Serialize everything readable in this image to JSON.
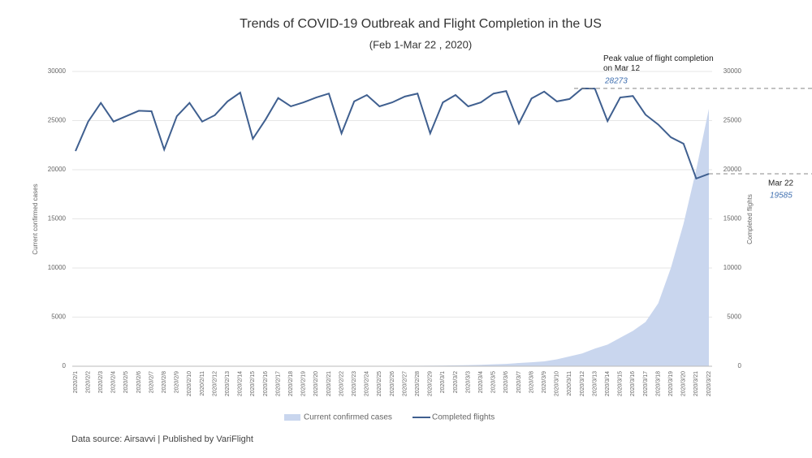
{
  "chart_data": {
    "type": "area-line",
    "title": "Trends of COVID-19 Outbreak and Flight Completion in the US",
    "subtitle": "(Feb 1-Mar 22 , 2020)",
    "ylabel": "Current confirmed cases",
    "y2label": "Completed flights",
    "source": "Data source: Airsavvi  |  Published by VariFlight",
    "categories": [
      "2020/2/1",
      "2020/2/2",
      "2020/2/3",
      "2020/2/4",
      "2020/2/5",
      "2020/2/6",
      "2020/2/7",
      "2020/2/8",
      "2020/2/9",
      "2020/2/10",
      "2020/2/11",
      "2020/2/12",
      "2020/2/13",
      "2020/2/14",
      "2020/2/15",
      "2020/2/16",
      "2020/2/17",
      "2020/2/18",
      "2020/2/19",
      "2020/2/20",
      "2020/2/21",
      "2020/2/22",
      "2020/2/23",
      "2020/2/24",
      "2020/2/25",
      "2020/2/26",
      "2020/2/27",
      "2020/2/28",
      "2020/2/29",
      "2020/3/1",
      "2020/3/2",
      "2020/3/3",
      "2020/3/4",
      "2020/3/5",
      "2020/3/6",
      "2020/3/7",
      "2020/3/8",
      "2020/3/9",
      "2020/3/10",
      "2020/3/11",
      "2020/3/12",
      "2020/3/13",
      "2020/3/14",
      "2020/3/15",
      "2020/3/16",
      "2020/3/17",
      "2020/3/18",
      "2020/3/19",
      "2020/3/20",
      "2020/3/21",
      "2020/3/22"
    ],
    "series": [
      {
        "name": "Current confirmed cases",
        "kind": "area",
        "color": "#c9d6ee",
        "axis": "y",
        "values": [
          8,
          8,
          10,
          10,
          10,
          10,
          10,
          10,
          10,
          10,
          12,
          12,
          13,
          13,
          13,
          13,
          13,
          13,
          13,
          13,
          14,
          14,
          15,
          15,
          40,
          45,
          50,
          55,
          60,
          70,
          90,
          110,
          140,
          200,
          240,
          330,
          400,
          500,
          700,
          1000,
          1300,
          1800,
          2200,
          2900,
          3600,
          4500,
          6400,
          10000,
          14500,
          20000,
          26200
        ]
      },
      {
        "name": "Completed flights",
        "kind": "line",
        "color": "#3f5f8f",
        "axis": "y2",
        "values": [
          21900,
          24900,
          26800,
          24900,
          25450,
          26000,
          25950,
          22050,
          25450,
          26800,
          24900,
          25550,
          26950,
          27850,
          23150,
          25100,
          27300,
          26450,
          26850,
          27350,
          27750,
          23700,
          26950,
          27600,
          26450,
          26850,
          27450,
          27750,
          23700,
          26850,
          27600,
          26450,
          26850,
          27750,
          28000,
          24700,
          27250,
          27950,
          26950,
          27200,
          28273,
          28250,
          24950,
          27350,
          27500,
          25600,
          24600,
          23300,
          22650,
          19100,
          19585
        ]
      }
    ],
    "annotations": [
      {
        "text": "Peak value of flight completion on Mar 12",
        "label": "28273"
      },
      {
        "text": "Mar 22",
        "label": "19585"
      }
    ],
    "ylim": [
      0,
      30000
    ],
    "yticks": [
      0,
      5000,
      10000,
      15000,
      20000,
      25000,
      30000
    ],
    "y2lim": [
      0,
      30000
    ],
    "y2ticks": [
      0,
      5000,
      10000,
      15000,
      20000,
      25000,
      30000
    ]
  }
}
